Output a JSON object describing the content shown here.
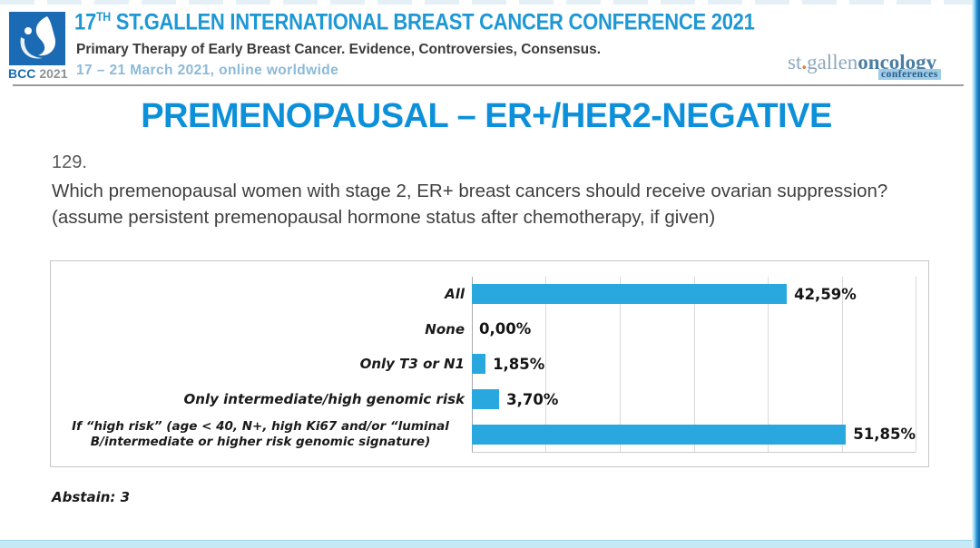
{
  "header": {
    "logo_bcc": "BCC",
    "logo_year": "2021",
    "title_num": "17",
    "title_sup": "TH",
    "title_rest": " ST.GALLEN INTERNATIONAL BREAST CANCER CONFERENCE 2021",
    "subtitle": "Primary Therapy of Early Breast Cancer. Evidence, Controversies, Consensus.",
    "dates": "17 – 21 March 2021, online worldwide",
    "right_logo": {
      "st": "st",
      "dot": ".",
      "gallen": "gallen",
      "oncology": "oncology",
      "conferences": "conferences"
    }
  },
  "slide": {
    "title": "PREMENOPAUSAL – ER+/HER2-NEGATIVE",
    "question_number": "129.",
    "question": "Which premenopausal women with stage 2, ER+ breast cancers should receive ovarian suppression? (assume persistent premenopausal hormone status after chemotherapy, if given)",
    "abstain": "Abstain: 3"
  },
  "chart_data": {
    "type": "bar",
    "orientation": "horizontal",
    "categories": [
      "All",
      "None",
      "Only T3 or N1",
      "Only intermediate/high genomic risk",
      "If “high risk” (age < 40, N+, high Ki67 and/or “luminal B/intermediate or higher risk genomic signature)"
    ],
    "values": [
      42.59,
      0.0,
      1.85,
      3.7,
      51.85
    ],
    "value_labels": [
      "42,59%",
      "0,00%",
      "1,85%",
      "3,70%",
      "51,85%"
    ],
    "title": "",
    "xlabel": "",
    "ylabel": "",
    "xlim": [
      0,
      60
    ],
    "gridline_interval": 10,
    "grid": true,
    "legend": false,
    "bar_color": "#29a8e0"
  },
  "colors": {
    "header_title_blue": "#1e98d5",
    "logo_blue": "#1a6bb3",
    "main_title_blue": "#0d90da",
    "bar_blue": "#29a8e0",
    "date_blue": "#8cb9d8",
    "bottom_bar_blue": "#c6e9f6"
  }
}
